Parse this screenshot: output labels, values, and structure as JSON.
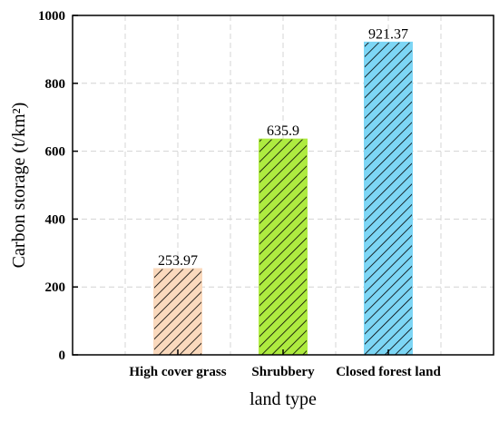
{
  "chart_data": {
    "type": "bar",
    "categories": [
      "High cover grass",
      "Shrubbery",
      "Closed forest land"
    ],
    "values": [
      253.97,
      635.9,
      921.37
    ],
    "value_labels": [
      "253.97",
      "635.9",
      "921.37"
    ],
    "xlabel": "land type",
    "ylabel": "Carbon storage (t/km²)",
    "ylim": [
      0,
      1000
    ],
    "yticks": [
      "0",
      "200",
      "400",
      "600",
      "800",
      "1000"
    ],
    "grid": true,
    "bar_fill": "hatched",
    "colors": [
      "#FAD9BD",
      "#AEEB40",
      "#7DD6F5"
    ]
  }
}
